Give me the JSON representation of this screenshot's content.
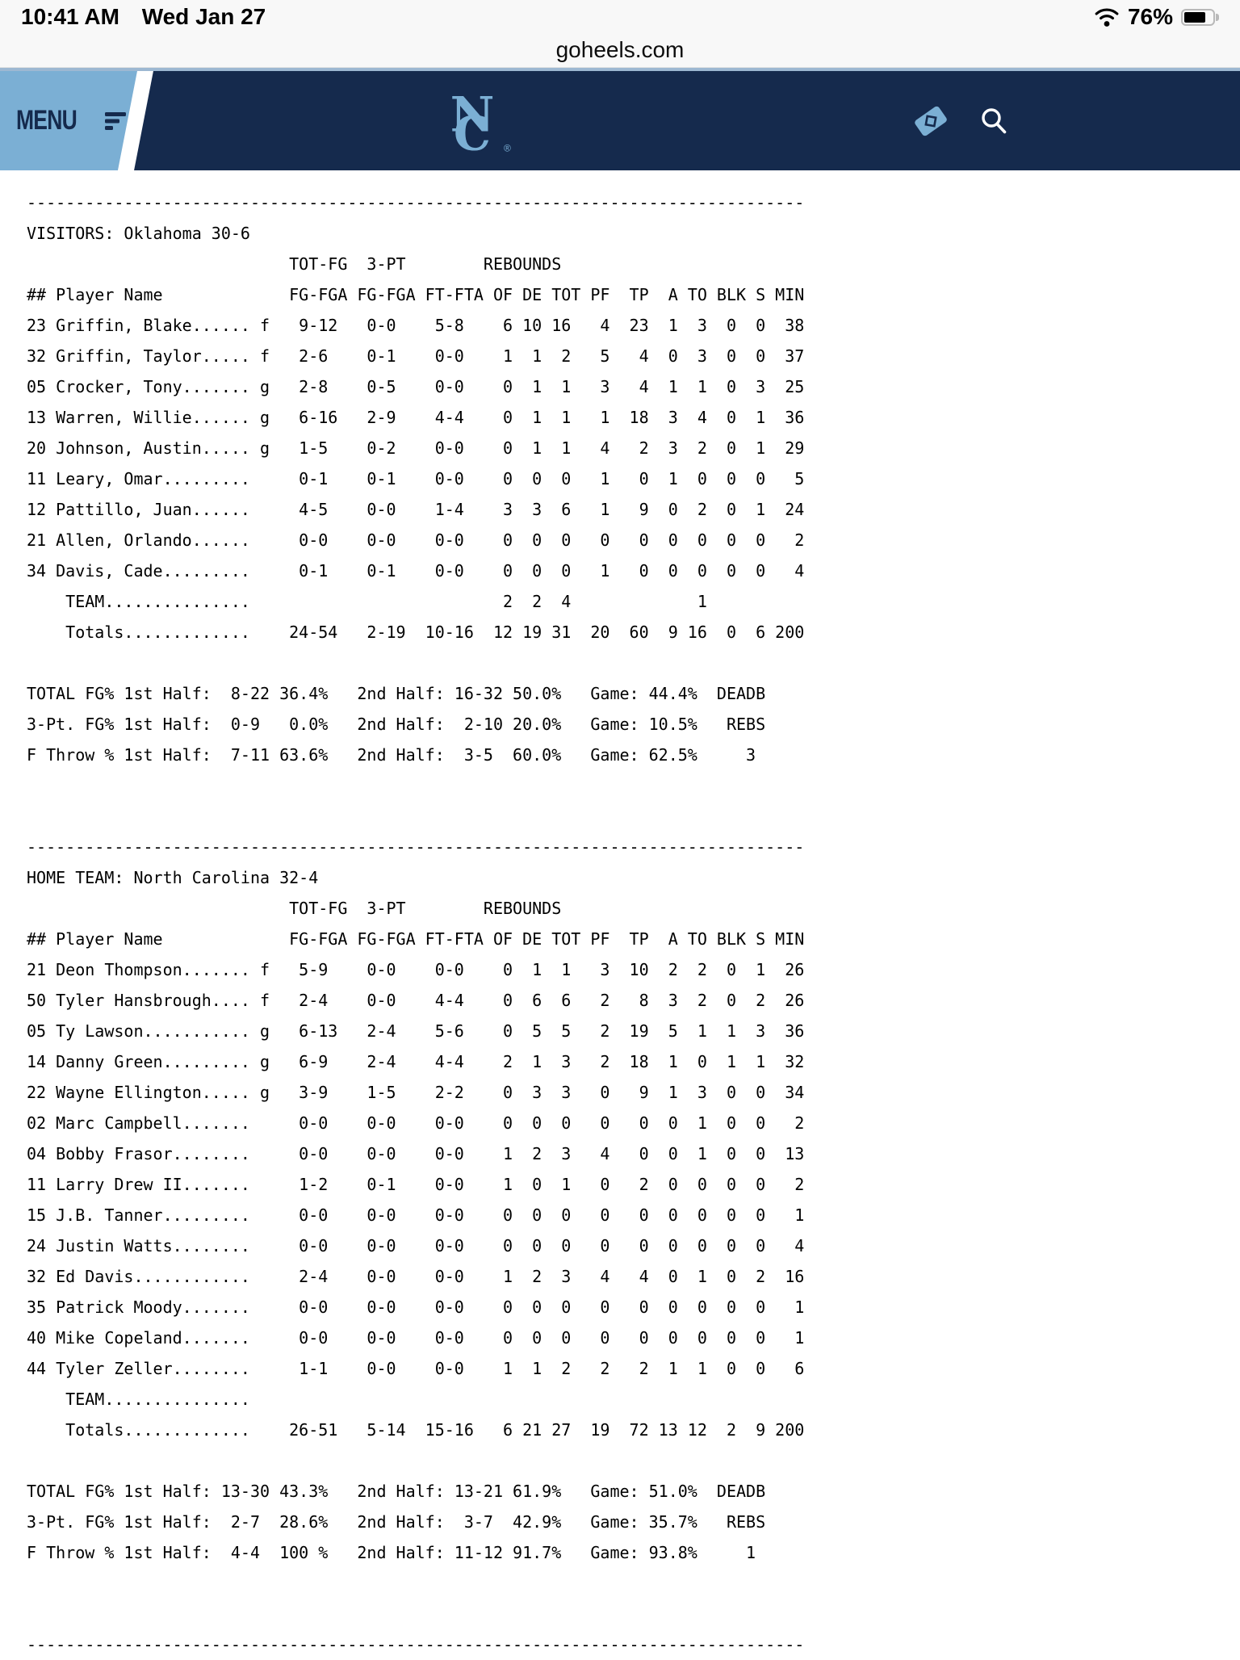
{
  "status_bar": {
    "time": "10:41 AM",
    "date": "Wed Jan 27",
    "battery": "76%"
  },
  "browser": {
    "address": "goheels.com"
  },
  "site_header": {
    "menu_label": "MENU",
    "logo_letters": {
      "n": "N",
      "c": "C",
      "trademark": "®"
    },
    "colors": {
      "navy": "#152a4d",
      "carolina_blue": "#7bafd4",
      "top_line": "#9db8d2"
    }
  },
  "box_score": {
    "stat_group_header": [
      "TOT-FG",
      "3-PT",
      "REBOUNDS"
    ],
    "column_header": [
      "## Player Name",
      "FG-FGA",
      "FG-FGA",
      "FT-FTA",
      "OF",
      "DE",
      "TOT",
      "PF",
      "TP",
      "A",
      "TO",
      "BLK",
      "S",
      "MIN"
    ],
    "team_row_label": "TEAM",
    "totals_label": "Totals",
    "half_labels": {
      "first": "1st Half:",
      "second": "2nd Half:",
      "game": "Game:"
    },
    "teams": [
      {
        "role_label": "VISITORS:",
        "team_name": "Oklahoma",
        "record": "30-6",
        "players": [
          [
            "23",
            "Griffin, Blake",
            "f",
            "9-12",
            "0-0",
            "5-8",
            "6",
            "10",
            "16",
            "4",
            "23",
            "1",
            "3",
            "0",
            "0",
            "38"
          ],
          [
            "32",
            "Griffin, Taylor",
            "f",
            "2-6",
            "0-1",
            "0-0",
            "1",
            "1",
            "2",
            "5",
            "4",
            "0",
            "3",
            "0",
            "0",
            "37"
          ],
          [
            "05",
            "Crocker, Tony",
            "g",
            "2-8",
            "0-5",
            "0-0",
            "0",
            "1",
            "1",
            "3",
            "4",
            "1",
            "1",
            "0",
            "3",
            "25"
          ],
          [
            "13",
            "Warren, Willie",
            "g",
            "6-16",
            "2-9",
            "4-4",
            "0",
            "1",
            "1",
            "1",
            "18",
            "3",
            "4",
            "0",
            "1",
            "36"
          ],
          [
            "20",
            "Johnson, Austin",
            "g",
            "1-5",
            "0-2",
            "0-0",
            "0",
            "1",
            "1",
            "4",
            "2",
            "3",
            "2",
            "0",
            "1",
            "29"
          ],
          [
            "11",
            "Leary, Omar",
            "",
            "0-1",
            "0-1",
            "0-0",
            "0",
            "0",
            "0",
            "1",
            "0",
            "1",
            "0",
            "0",
            "0",
            "5"
          ],
          [
            "12",
            "Pattillo, Juan",
            "",
            "4-5",
            "0-0",
            "1-4",
            "3",
            "3",
            "6",
            "1",
            "9",
            "0",
            "2",
            "0",
            "1",
            "24"
          ],
          [
            "21",
            "Allen, Orlando",
            "",
            "0-0",
            "0-0",
            "0-0",
            "0",
            "0",
            "0",
            "0",
            "0",
            "0",
            "0",
            "0",
            "0",
            "2"
          ],
          [
            "34",
            "Davis, Cade",
            "",
            "0-1",
            "0-1",
            "0-0",
            "0",
            "0",
            "0",
            "1",
            "0",
            "0",
            "0",
            "0",
            "0",
            "4"
          ]
        ],
        "team_row": {
          "of": "2",
          "de": "2",
          "tot": "4",
          "to": "1"
        },
        "totals": [
          "24-54",
          "2-19",
          "10-16",
          "12",
          "19",
          "31",
          "20",
          "60",
          "9",
          "16",
          "0",
          "6",
          "200"
        ],
        "shooting_summary": [
          {
            "label": "TOTAL FG%",
            "first_half": "8-22",
            "first_half_pct": "36.4%",
            "second_half": "16-32",
            "second_half_pct": "50.0%",
            "game_pct": "44.4%",
            "right_note": "DEADB"
          },
          {
            "label": "3-Pt. FG%",
            "first_half": "0-9",
            "first_half_pct": "0.0%",
            "second_half": "2-10",
            "second_half_pct": "20.0%",
            "game_pct": "10.5%",
            "right_note": "REBS"
          },
          {
            "label": "F Throw %",
            "first_half": "7-11",
            "first_half_pct": "63.6%",
            "second_half": "3-5",
            "second_half_pct": "60.0%",
            "game_pct": "62.5%",
            "right_note": "3"
          }
        ]
      },
      {
        "role_label": "HOME TEAM:",
        "team_name": "North Carolina",
        "record": "32-4",
        "players": [
          [
            "21",
            "Deon Thompson",
            "f",
            "5-9",
            "0-0",
            "0-0",
            "0",
            "1",
            "1",
            "3",
            "10",
            "2",
            "2",
            "0",
            "1",
            "26"
          ],
          [
            "50",
            "Tyler Hansbrough",
            "f",
            "2-4",
            "0-0",
            "4-4",
            "0",
            "6",
            "6",
            "2",
            "8",
            "3",
            "2",
            "0",
            "2",
            "26"
          ],
          [
            "05",
            "Ty Lawson",
            "g",
            "6-13",
            "2-4",
            "5-6",
            "0",
            "5",
            "5",
            "2",
            "19",
            "5",
            "1",
            "1",
            "3",
            "36"
          ],
          [
            "14",
            "Danny Green",
            "g",
            "6-9",
            "2-4",
            "4-4",
            "2",
            "1",
            "3",
            "2",
            "18",
            "1",
            "0",
            "1",
            "1",
            "32"
          ],
          [
            "22",
            "Wayne Ellington",
            "g",
            "3-9",
            "1-5",
            "2-2",
            "0",
            "3",
            "3",
            "0",
            "9",
            "1",
            "3",
            "0",
            "0",
            "34"
          ],
          [
            "02",
            "Marc Campbell",
            "",
            "0-0",
            "0-0",
            "0-0",
            "0",
            "0",
            "0",
            "0",
            "0",
            "0",
            "1",
            "0",
            "0",
            "2"
          ],
          [
            "04",
            "Bobby Frasor",
            "",
            "0-0",
            "0-0",
            "0-0",
            "1",
            "2",
            "3",
            "4",
            "0",
            "0",
            "1",
            "0",
            "0",
            "13"
          ],
          [
            "11",
            "Larry Drew II",
            "",
            "1-2",
            "0-1",
            "0-0",
            "1",
            "0",
            "1",
            "0",
            "2",
            "0",
            "0",
            "0",
            "0",
            "2"
          ],
          [
            "15",
            "J.B. Tanner",
            "",
            "0-0",
            "0-0",
            "0-0",
            "0",
            "0",
            "0",
            "0",
            "0",
            "0",
            "0",
            "0",
            "0",
            "1"
          ],
          [
            "24",
            "Justin Watts",
            "",
            "0-0",
            "0-0",
            "0-0",
            "0",
            "0",
            "0",
            "0",
            "0",
            "0",
            "0",
            "0",
            "0",
            "4"
          ],
          [
            "32",
            "Ed Davis",
            "",
            "2-4",
            "0-0",
            "0-0",
            "1",
            "2",
            "3",
            "4",
            "4",
            "0",
            "1",
            "0",
            "2",
            "16"
          ],
          [
            "35",
            "Patrick Moody",
            "",
            "0-0",
            "0-0",
            "0-0",
            "0",
            "0",
            "0",
            "0",
            "0",
            "0",
            "0",
            "0",
            "0",
            "1"
          ],
          [
            "40",
            "Mike Copeland",
            "",
            "0-0",
            "0-0",
            "0-0",
            "0",
            "0",
            "0",
            "0",
            "0",
            "0",
            "0",
            "0",
            "0",
            "1"
          ],
          [
            "44",
            "Tyler Zeller",
            "",
            "1-1",
            "0-0",
            "0-0",
            "1",
            "1",
            "2",
            "2",
            "2",
            "1",
            "1",
            "0",
            "0",
            "6"
          ]
        ],
        "team_row": {},
        "totals": [
          "26-51",
          "5-14",
          "15-16",
          "6",
          "21",
          "27",
          "19",
          "72",
          "13",
          "12",
          "2",
          "9",
          "200"
        ],
        "shooting_summary": [
          {
            "label": "TOTAL FG%",
            "first_half": "13-30",
            "first_half_pct": "43.3%",
            "second_half": "13-21",
            "second_half_pct": "61.9%",
            "game_pct": "51.0%",
            "right_note": "DEADB"
          },
          {
            "label": "3-Pt. FG%",
            "first_half": "2-7",
            "first_half_pct": "28.6%",
            "second_half": "3-7",
            "second_half_pct": "42.9%",
            "game_pct": "35.7%",
            "right_note": "REBS"
          },
          {
            "label": "F Throw %",
            "first_half": "4-4",
            "first_half_pct": "100 %",
            "second_half": "11-12",
            "second_half_pct": "91.7%",
            "game_pct": "93.8%",
            "right_note": "1"
          }
        ]
      }
    ]
  }
}
